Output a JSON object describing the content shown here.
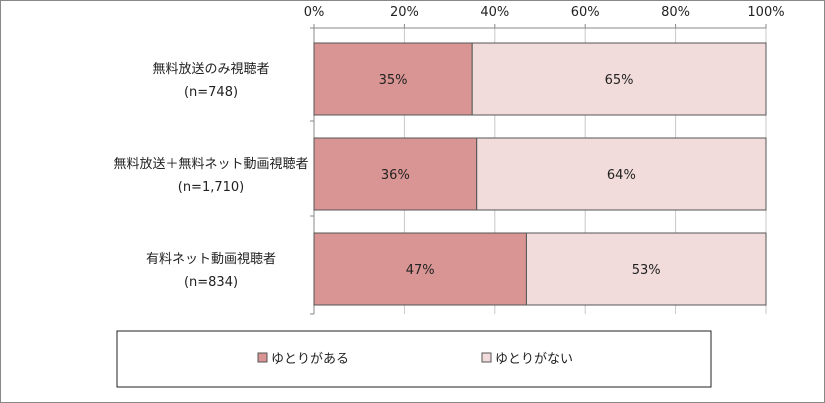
{
  "chart_data": {
    "type": "bar",
    "orientation": "horizontal",
    "stacked": true,
    "percent_stacked": true,
    "categories": [
      {
        "label": "無料放送のみ視聴者",
        "n": "(n=748)"
      },
      {
        "label": "無料放送＋無料ネット動画視聴者",
        "n": "(n=1,710)"
      },
      {
        "label": "有料ネット動画視聴者",
        "n": "(n=834)"
      }
    ],
    "series": [
      {
        "name": "ゆとりがある",
        "values": [
          35,
          36,
          47
        ],
        "labels": [
          "35%",
          "36%",
          "47%"
        ],
        "color": "#d99594"
      },
      {
        "name": "ゆとりがない",
        "values": [
          65,
          64,
          53
        ],
        "labels": [
          "65%",
          "64%",
          "53%"
        ],
        "color": "#f2dcdb"
      }
    ],
    "xlim": [
      0,
      100
    ],
    "x_ticks": [
      "0%",
      "20%",
      "40%",
      "60%",
      "80%",
      "100%"
    ],
    "x_axis_position": "top",
    "grid": true,
    "legend_position": "bottom"
  },
  "colors": {
    "bar_border": "#555555",
    "grid": "#c8c8c8",
    "frame": "#888888"
  }
}
